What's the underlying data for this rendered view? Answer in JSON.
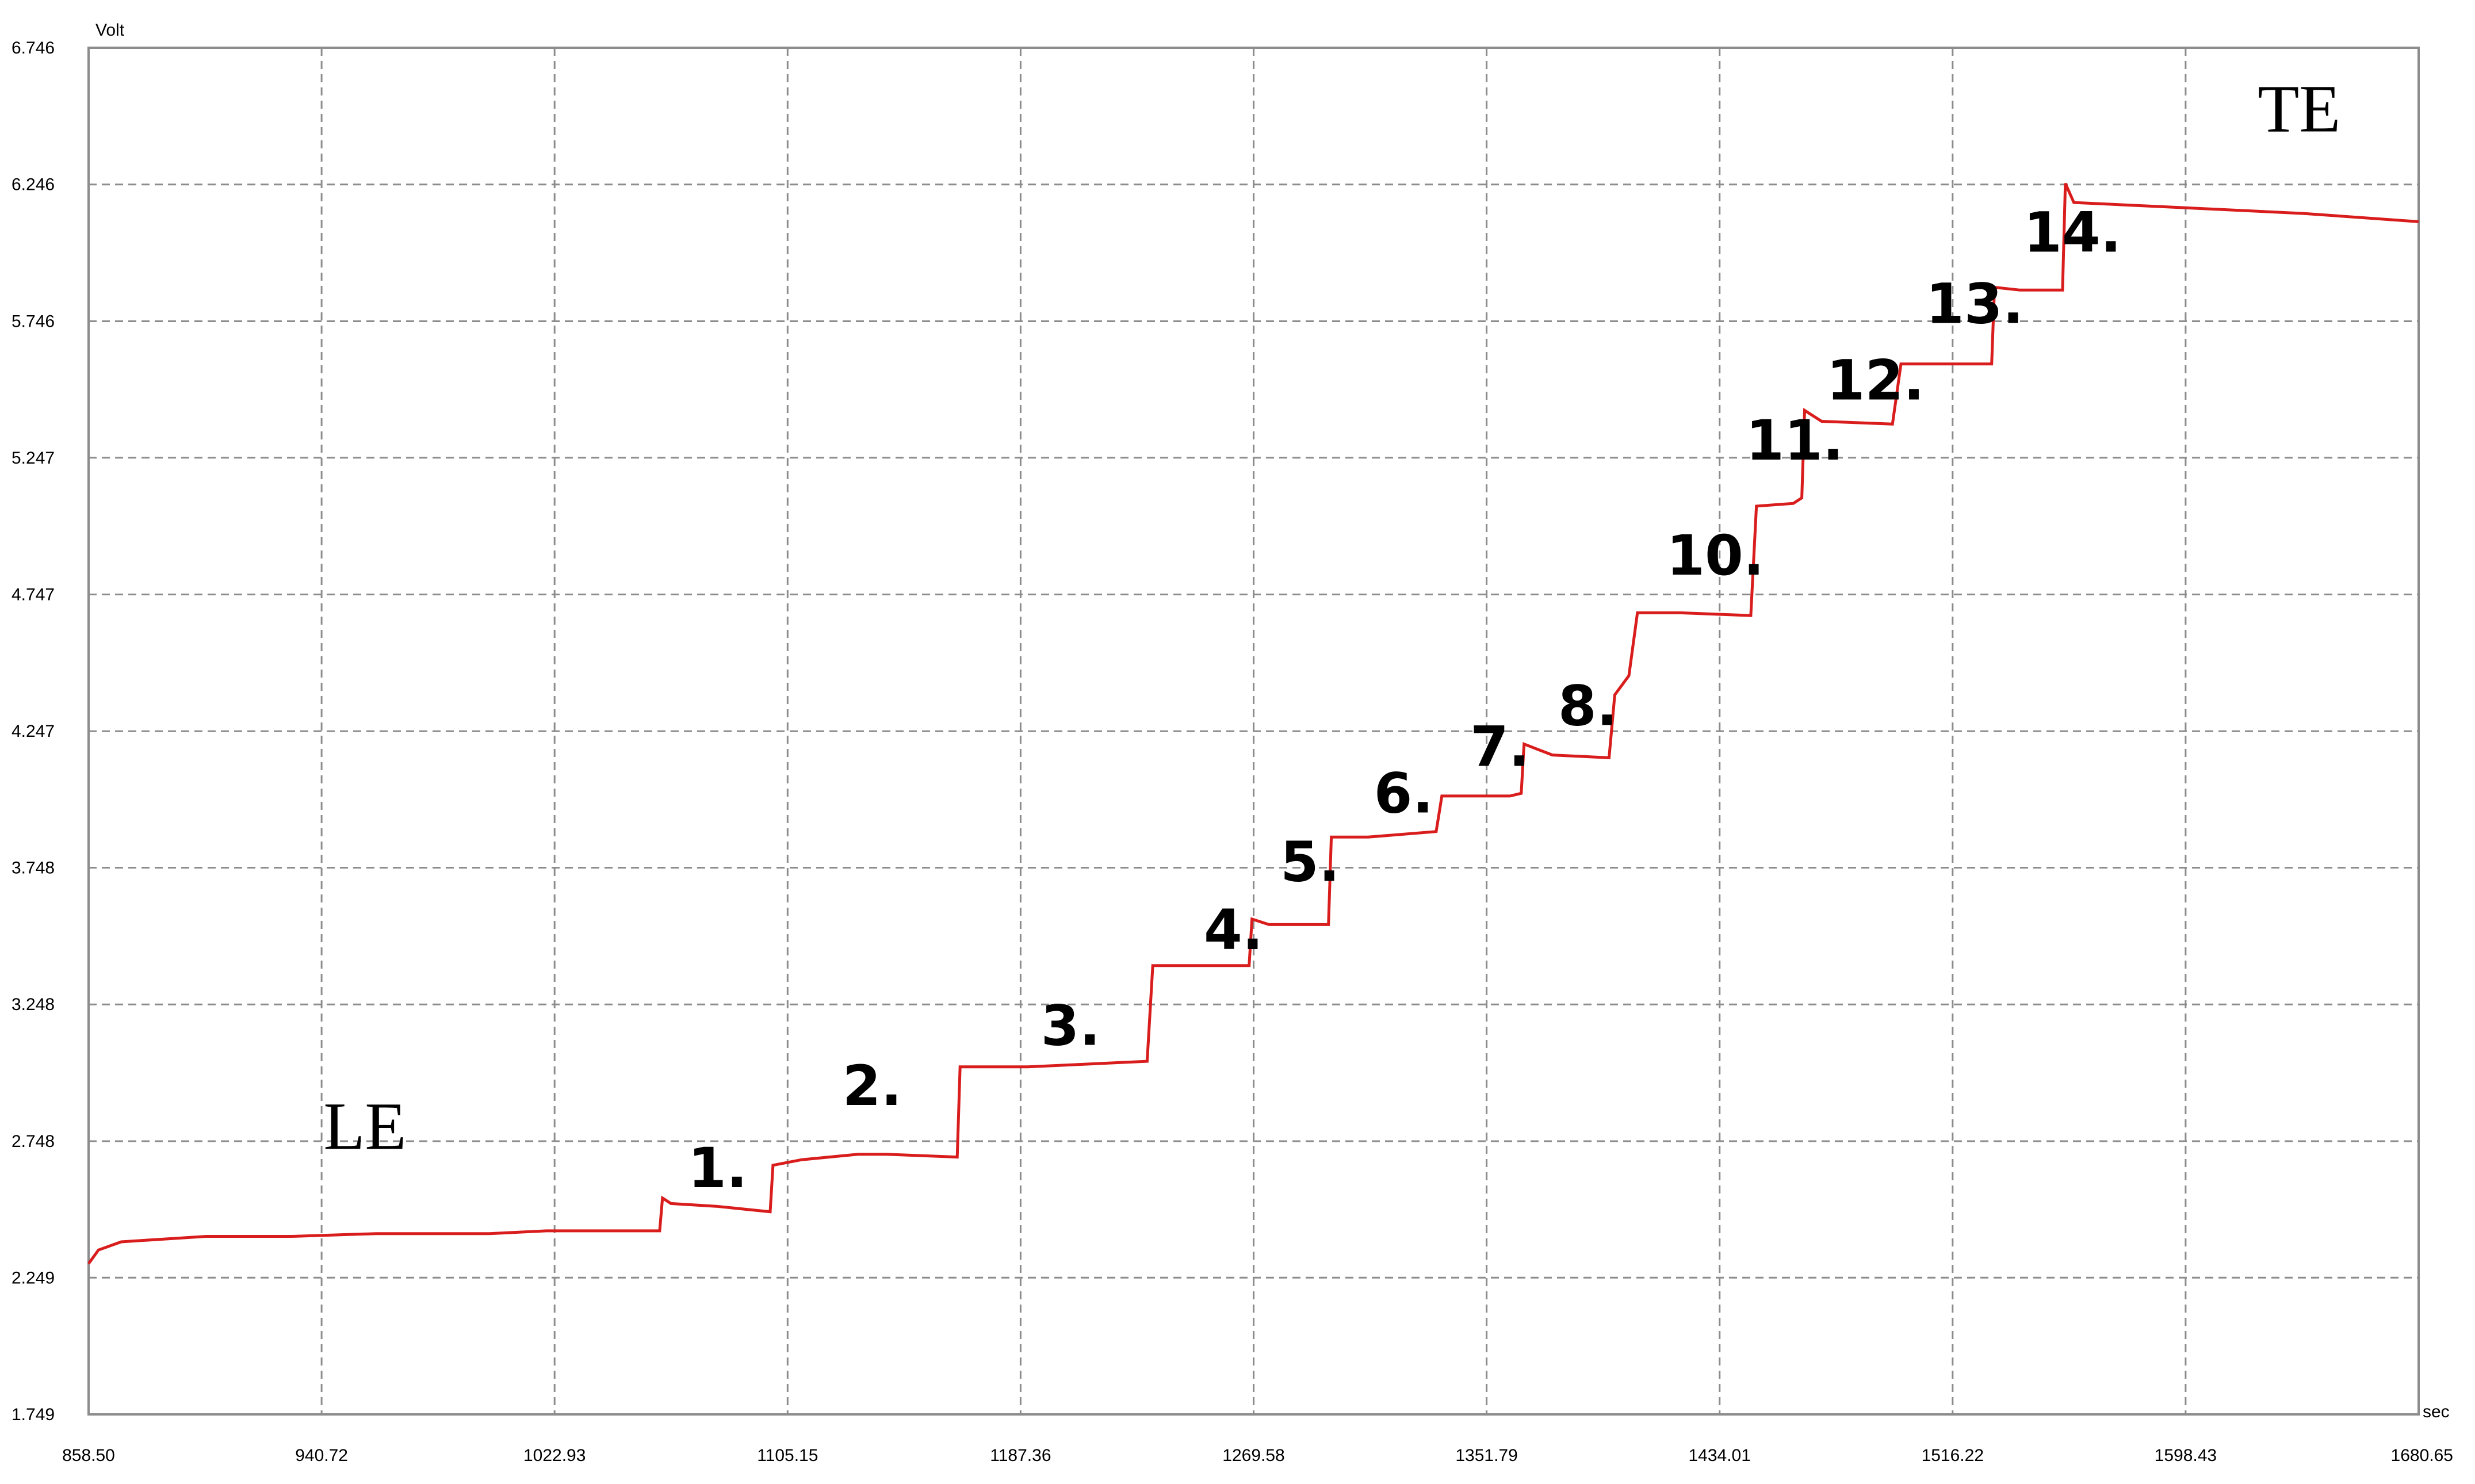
{
  "chart_data": {
    "type": "line",
    "y_unit": "Volt",
    "x_unit": "sec",
    "xlim": [
      858.5,
      1680.65
    ],
    "ylim": [
      1.749,
      6.746
    ],
    "x_ticks": [
      "858.50",
      "940.72",
      "1022.93",
      "1105.15",
      "1187.36",
      "1269.58",
      "1351.79",
      "1434.01",
      "1516.22",
      "1598.43",
      "1680.65"
    ],
    "y_ticks": [
      "6.746",
      "6.246",
      "5.746",
      "5.247",
      "4.747",
      "4.247",
      "3.748",
      "3.248",
      "2.748",
      "2.249",
      "1.749"
    ],
    "grid": true,
    "series": [
      {
        "color": "#d91d1d",
        "points": [
          [
            858.5,
            2.3
          ],
          [
            862,
            2.35
          ],
          [
            870,
            2.38
          ],
          [
            885,
            2.39
          ],
          [
            900,
            2.4
          ],
          [
            930,
            2.4
          ],
          [
            960,
            2.41
          ],
          [
            1000,
            2.41
          ],
          [
            1020,
            2.42
          ],
          [
            1050,
            2.42
          ],
          [
            1060,
            2.42
          ],
          [
            1061,
            2.54
          ],
          [
            1064,
            2.52
          ],
          [
            1080,
            2.51
          ],
          [
            1099,
            2.49
          ],
          [
            1100,
            2.66
          ],
          [
            1110,
            2.68
          ],
          [
            1130,
            2.7
          ],
          [
            1140,
            2.7
          ],
          [
            1165,
            2.69
          ],
          [
            1166,
            3.02
          ],
          [
            1190,
            3.02
          ],
          [
            1232,
            3.04
          ],
          [
            1234,
            3.39
          ],
          [
            1252,
            3.39
          ],
          [
            1268,
            3.39
          ],
          [
            1269,
            3.56
          ],
          [
            1275,
            3.54
          ],
          [
            1296,
            3.54
          ],
          [
            1297,
            3.86
          ],
          [
            1310,
            3.86
          ],
          [
            1334,
            3.88
          ],
          [
            1336,
            4.01
          ],
          [
            1360,
            4.01
          ],
          [
            1364,
            4.02
          ],
          [
            1365,
            4.2
          ],
          [
            1375,
            4.16
          ],
          [
            1395,
            4.15
          ],
          [
            1397,
            4.38
          ],
          [
            1402,
            4.45
          ],
          [
            1405,
            4.68
          ],
          [
            1420,
            4.68
          ],
          [
            1445,
            4.67
          ],
          [
            1447,
            5.07
          ],
          [
            1460,
            5.08
          ],
          [
            1463,
            5.1
          ],
          [
            1464,
            5.42
          ],
          [
            1470,
            5.38
          ],
          [
            1495,
            5.37
          ],
          [
            1498,
            5.59
          ],
          [
            1530,
            5.59
          ],
          [
            1531,
            5.87
          ],
          [
            1540,
            5.86
          ],
          [
            1555,
            5.86
          ],
          [
            1556,
            6.25
          ],
          [
            1559,
            6.18
          ],
          [
            1600,
            6.16
          ],
          [
            1640,
            6.14
          ],
          [
            1680.65,
            6.11
          ]
        ]
      }
    ],
    "annotations": [
      {
        "text": "1.",
        "x": 1080.5,
        "y": 2.58
      },
      {
        "text": "2.",
        "x": 1135.0,
        "y": 2.88
      },
      {
        "text": "3.",
        "x": 1205.0,
        "y": 3.1
      },
      {
        "text": "4.",
        "x": 1262.5,
        "y": 3.45
      },
      {
        "text": "5.",
        "x": 1289.5,
        "y": 3.7
      },
      {
        "text": "6.",
        "x": 1322.5,
        "y": 3.95
      },
      {
        "text": "7.",
        "x": 1356.5,
        "y": 4.12
      },
      {
        "text": "8.",
        "x": 1387.5,
        "y": 4.27
      },
      {
        "text": "10.",
        "x": 1432.5,
        "y": 4.82
      },
      {
        "text": "11.",
        "x": 1460.5,
        "y": 5.24
      },
      {
        "text": "12.",
        "x": 1489.0,
        "y": 5.46
      },
      {
        "text": "13.",
        "x": 1524.0,
        "y": 5.74
      },
      {
        "text": "14.",
        "x": 1558.5,
        "y": 6.0
      }
    ],
    "region_labels": [
      {
        "text": "LE",
        "x": 956.0,
        "y": 2.72
      },
      {
        "text": "TE",
        "x": 1638.5,
        "y": 6.44
      }
    ]
  }
}
